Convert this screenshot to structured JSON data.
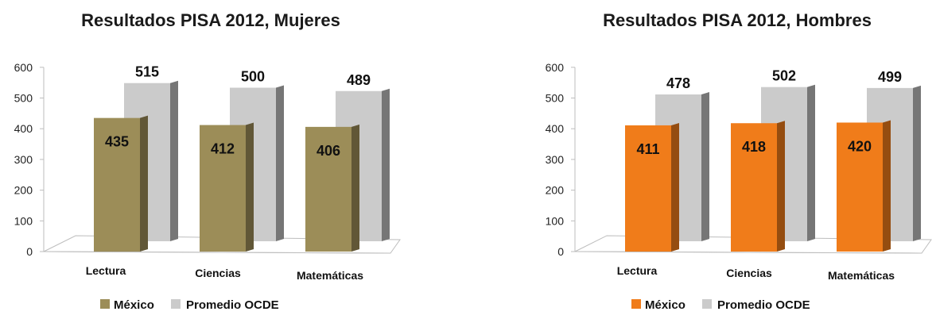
{
  "chart_data": [
    {
      "type": "bar",
      "title": "Resultados PISA 2012, Mujeres",
      "categories": [
        "Lectura",
        "Ciencias",
        "Matemáticas"
      ],
      "ylim": [
        0,
        600
      ],
      "yticks": [
        0,
        100,
        200,
        300,
        400,
        500,
        600
      ],
      "grid": false,
      "legend_position": "bottom",
      "series": [
        {
          "name": "México",
          "values": [
            435,
            412,
            406
          ],
          "color": "#9c8d58"
        },
        {
          "name": "Promedio OCDE",
          "values": [
            515,
            500,
            489
          ],
          "color": "#cbcbcb"
        }
      ]
    },
    {
      "type": "bar",
      "title": "Resultados PISA 2012, Hombres",
      "categories": [
        "Lectura",
        "Ciencias",
        "Matemáticas"
      ],
      "ylim": [
        0,
        600
      ],
      "yticks": [
        0,
        100,
        200,
        300,
        400,
        500,
        600
      ],
      "grid": false,
      "legend_position": "bottom",
      "series": [
        {
          "name": "México",
          "values": [
            411,
            418,
            420
          ],
          "color": "#f07c1a"
        },
        {
          "name": "Promedio OCDE",
          "values": [
            478,
            502,
            499
          ],
          "color": "#cbcbcb"
        }
      ]
    }
  ]
}
